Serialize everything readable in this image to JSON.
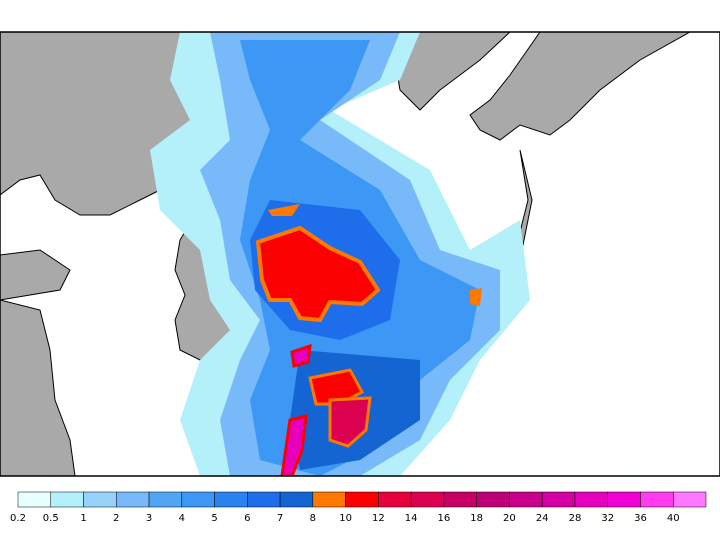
{
  "colorbar": {
    "labels": [
      0.2,
      0.5,
      1,
      2,
      3,
      4,
      5,
      6,
      7,
      8,
      10,
      12,
      14,
      16,
      18,
      20,
      24,
      28,
      32,
      36,
      40
    ],
    "colors": [
      "#e6ffff",
      "#b4f0fa",
      "#96d2fa",
      "#78b9fa",
      "#50a5f5",
      "#3c97f5",
      "#2882f0",
      "#1e6eeb",
      "#1464d2",
      "#ff7800",
      "#fa0000",
      "#e6003c",
      "#dc0050",
      "#c80064",
      "#be0078",
      "#c8008c",
      "#d200a5",
      "#e600be",
      "#f000d2",
      "#ff3cf0",
      "#ff78ff"
    ]
  }
}
